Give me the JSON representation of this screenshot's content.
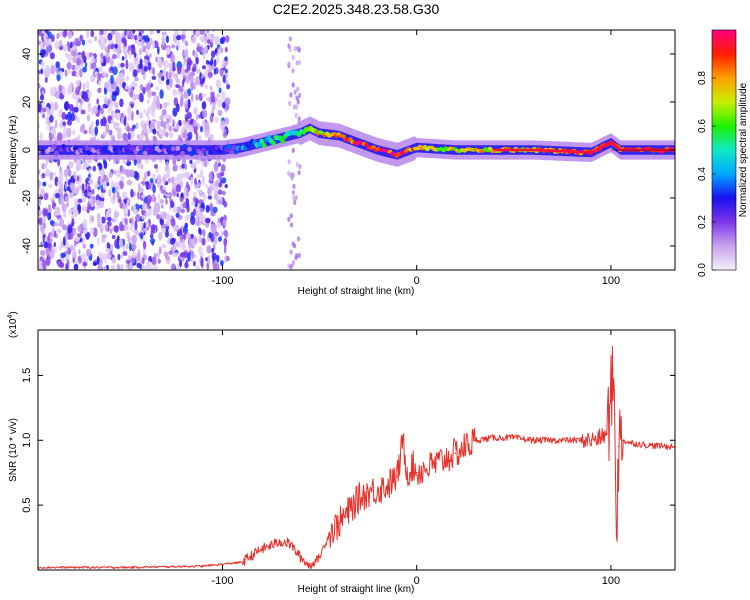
{
  "title": "C2E2.2025.348.23.58.G30",
  "chart_data": [
    {
      "type": "heatmap",
      "xlabel": "Height of straight line (km)",
      "ylabel": "Frequency (Hz)",
      "xlim": [
        -195,
        133
      ],
      "ylim": [
        -50,
        50
      ],
      "x_ticks": [
        -100,
        0,
        100
      ],
      "y_ticks": [
        -40,
        -20,
        0,
        20,
        40
      ],
      "ridge": {
        "x": [
          -195,
          -100,
          -90,
          -80,
          -70,
          -60,
          -55,
          -50,
          -40,
          -30,
          -20,
          -10,
          0,
          20,
          60,
          90,
          100,
          105,
          133
        ],
        "freq": [
          0,
          0,
          1,
          3,
          5,
          7,
          9,
          7,
          6,
          3,
          0,
          -2,
          1,
          0,
          0,
          -1,
          3,
          0,
          0
        ],
        "amplitude": [
          0.18,
          0.25,
          0.35,
          0.45,
          0.5,
          0.55,
          0.6,
          0.75,
          0.85,
          0.9,
          0.95,
          0.9,
          0.8,
          0.7,
          0.75,
          0.9,
          0.95,
          0.9,
          0.95
        ]
      },
      "noise_region_end": -97,
      "colorbar": {
        "label": "Normalized spectral amplitude",
        "range": [
          0,
          1
        ],
        "ticks": [
          0.0,
          0.2,
          0.4,
          0.6,
          0.8
        ],
        "tick_labels": [
          "0.0",
          "0.2",
          "0.4",
          "0.6",
          "0.8"
        ],
        "stops": [
          "#f5f0fb",
          "#c9a2ee",
          "#7e36e8",
          "#1a10f0",
          "#00a8ff",
          "#10e8c8",
          "#20f000",
          "#c8ef00",
          "#ffa000",
          "#ff1e00",
          "#ff0080"
        ]
      }
    },
    {
      "type": "line",
      "xlabel": "Height of straight line (km)",
      "ylabel": "SNR (10 * v/v)",
      "multiplier": "(x10",
      "multiplier_exp": "4",
      "multiplier_close": ")",
      "xlim": [
        -195,
        133
      ],
      "ylim": [
        0,
        1.85
      ],
      "x_ticks": [
        -100,
        0,
        100
      ],
      "y_ticks": [
        0.5,
        1.0,
        1.5
      ],
      "y_tick_labels": [
        "0.5",
        "1.0",
        "1.5"
      ],
      "series": [
        {
          "name": "SNR",
          "color": "#e8302a",
          "x": [
            -195,
            -150,
            -110,
            -90,
            -80,
            -70,
            -65,
            -60,
            -55,
            -50,
            -45,
            -40,
            -35,
            -30,
            -25,
            -20,
            -15,
            -10,
            -7,
            -5,
            -2,
            0,
            10,
            20,
            30,
            40,
            50,
            60,
            70,
            80,
            90,
            95,
            98,
            100,
            101,
            102,
            103,
            104,
            106,
            110,
            120,
            133
          ],
          "y": [
            0.02,
            0.02,
            0.03,
            0.06,
            0.16,
            0.22,
            0.2,
            0.1,
            0.03,
            0.1,
            0.28,
            0.36,
            0.45,
            0.55,
            0.6,
            0.62,
            0.65,
            0.72,
            1.0,
            0.75,
            0.8,
            0.75,
            0.82,
            0.9,
            1.0,
            1.02,
            1.02,
            1.0,
            1.0,
            1.0,
            1.0,
            1.02,
            1.05,
            1.3,
            1.55,
            1.2,
            0.35,
            0.95,
            1.0,
            0.98,
            0.96,
            0.95
          ]
        }
      ]
    }
  ]
}
